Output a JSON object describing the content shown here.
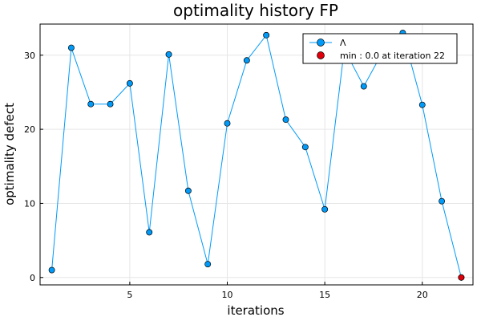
{
  "chart_data": {
    "type": "line",
    "title": "optimality history FP",
    "xlabel": "iterations",
    "ylabel": "optimality defect",
    "xlim": [
      0.4,
      22.6
    ],
    "ylim": [
      -1,
      34.2
    ],
    "xticks": [
      5,
      10,
      15,
      20
    ],
    "yticks": [
      0,
      10,
      20,
      30
    ],
    "grid": true,
    "legend_position": "top-right",
    "series": [
      {
        "name": "Λ",
        "color": "#009af9",
        "marker": "circle",
        "x": [
          1,
          2,
          3,
          4,
          5,
          6,
          7,
          8,
          9,
          10,
          11,
          12,
          13,
          14,
          15,
          16,
          17,
          18,
          19,
          20,
          21,
          22
        ],
        "y": [
          1.0,
          31.0,
          23.4,
          23.4,
          26.2,
          6.1,
          30.1,
          11.7,
          1.8,
          20.8,
          29.3,
          32.7,
          21.3,
          17.6,
          9.2,
          30.8,
          25.8,
          30.6,
          33.0,
          23.3,
          10.3,
          0.0
        ]
      },
      {
        "name": "min : 0.0 at iteration 22",
        "color": "#e0000b",
        "marker": "circle",
        "x": [
          22
        ],
        "y": [
          0.0
        ]
      }
    ]
  }
}
